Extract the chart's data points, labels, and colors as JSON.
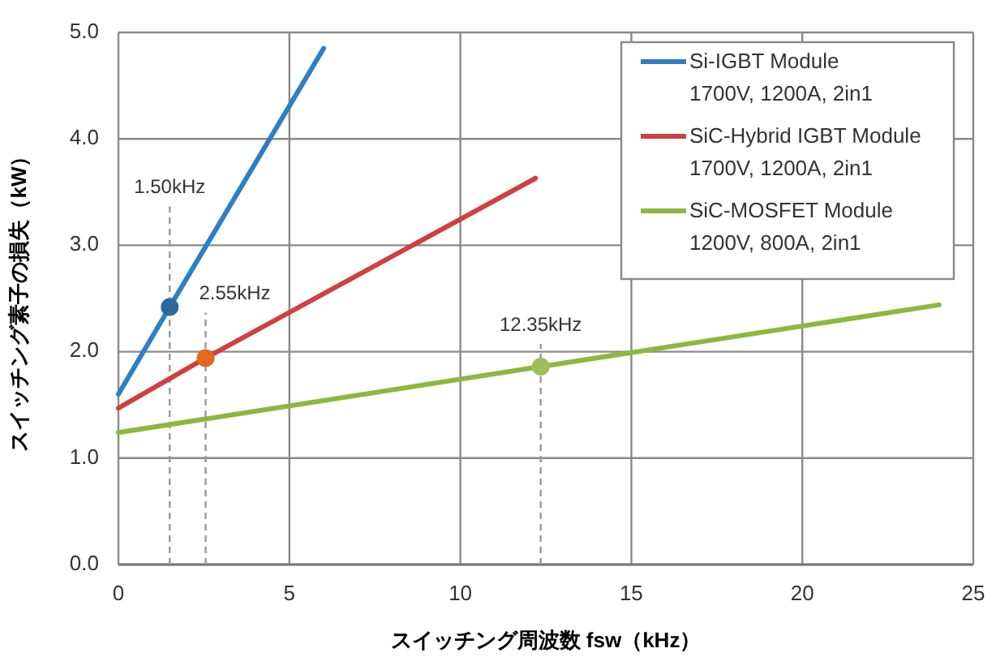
{
  "chart_data": {
    "type": "line",
    "xlabel": "スイッチング周波数 fsw（kHz）",
    "ylabel": "スイッチング素子の損失（kW）",
    "xlim": [
      0,
      25
    ],
    "xticks": [
      0,
      5,
      10,
      15,
      20,
      25
    ],
    "ylim": [
      0,
      5
    ],
    "yticks": [
      {
        "value": 0,
        "label": "0.0"
      },
      {
        "value": 1,
        "label": "1.0"
      },
      {
        "value": 2,
        "label": "2.0"
      },
      {
        "value": 3,
        "label": "3.0"
      },
      {
        "value": 4,
        "label": "4.0"
      },
      {
        "value": 5,
        "label": "5.0"
      }
    ],
    "grid": true,
    "legend": "top right",
    "series": [
      {
        "name": "Si-IGBT Module\n1700V, 1200A, 2in1",
        "color": "#2e7fc4",
        "x": [
          0,
          1.5,
          6
        ],
        "values": [
          1.6,
          2.42,
          4.85
        ]
      },
      {
        "name": "SiC-Hybrid IGBT Module\n1700V, 1200A, 2in1",
        "color": "#d0403f",
        "x": [
          0,
          2.55,
          12.2
        ],
        "values": [
          1.47,
          1.94,
          3.63
        ]
      },
      {
        "name": "SiC-MOSFET Module\n1200V, 800A, 2in1",
        "color": "#8db83e",
        "x": [
          0,
          12.35,
          24
        ],
        "values": [
          1.24,
          1.86,
          2.44
        ]
      },
      {
        "type": "scatter",
        "marker": "circle",
        "x": [
          1.5,
          2.55,
          12.35
        ],
        "values": [
          2.42,
          1.94,
          1.86
        ],
        "colors": [
          "#2c6a9e",
          "#e06a20",
          "#9cc05a"
        ]
      }
    ],
    "ref_lines": [
      {
        "axis": "x",
        "value": 1.5,
        "label": "1.50kHz",
        "line_style": "dashed",
        "color": "#999999"
      },
      {
        "axis": "x",
        "value": 2.55,
        "label": "2.55kHz",
        "line_style": "dashed",
        "color": "#999999"
      },
      {
        "axis": "x",
        "value": 12.35,
        "label": "12.35kHz",
        "line_style": "dashed",
        "color": "#999999"
      }
    ]
  }
}
